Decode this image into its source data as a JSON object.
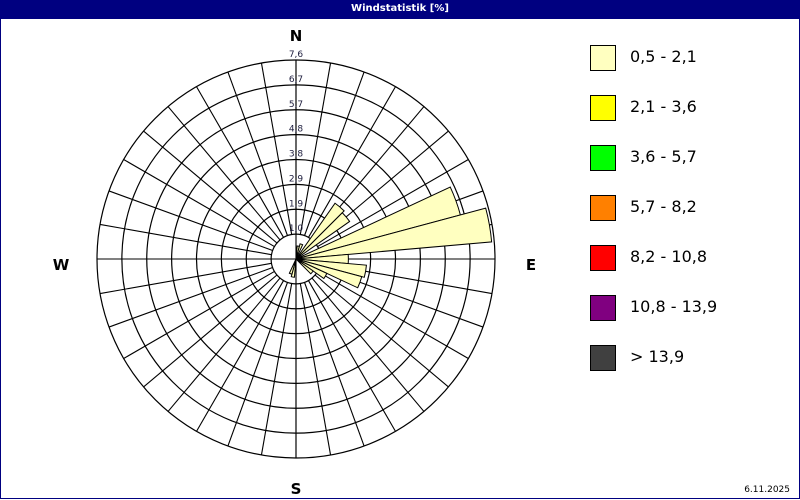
{
  "window": {
    "title": "Windstatistik [%]",
    "date": "6.11.2025"
  },
  "chart_data": {
    "type": "windrose",
    "title": "Windstatistik [%]",
    "unit": "%",
    "directions": {
      "N": "N",
      "E": "E",
      "S": "S",
      "W": "W"
    },
    "sector_width_deg": 10,
    "radial_max": 7.6,
    "radial_ticks": [
      "1,0",
      "1,9",
      "2,9",
      "3,8",
      "4,8",
      "5,7",
      "6,7",
      "7,6"
    ],
    "series": [
      {
        "name": "0,5 - 2,1",
        "color": "#ffffc0",
        "bearings": [
          10,
          20,
          40,
          50,
          70,
          80,
          90,
          100,
          110,
          120,
          130,
          190,
          200
        ],
        "values": [
          0.5,
          0.6,
          2.6,
          2.5,
          6.5,
          7.5,
          2.0,
          2.7,
          2.6,
          1.3,
          0.8,
          0.7,
          0.6
        ]
      }
    ],
    "legend": [
      {
        "label": "0,5 - 2,1",
        "color": "#ffffc0"
      },
      {
        "label": "2,1 - 3,6",
        "color": "#ffff00"
      },
      {
        "label": "3,6 - 5,7",
        "color": "#00ff00"
      },
      {
        "label": "5,7 - 8,2",
        "color": "#ff8000"
      },
      {
        "label": "8,2 - 10,8",
        "color": "#ff0000"
      },
      {
        "label": "10,8 - 13,9",
        "color": "#800080"
      },
      {
        "label": "> 13,9",
        "color": "#404040"
      }
    ],
    "legend_position": "right",
    "grid": true
  }
}
